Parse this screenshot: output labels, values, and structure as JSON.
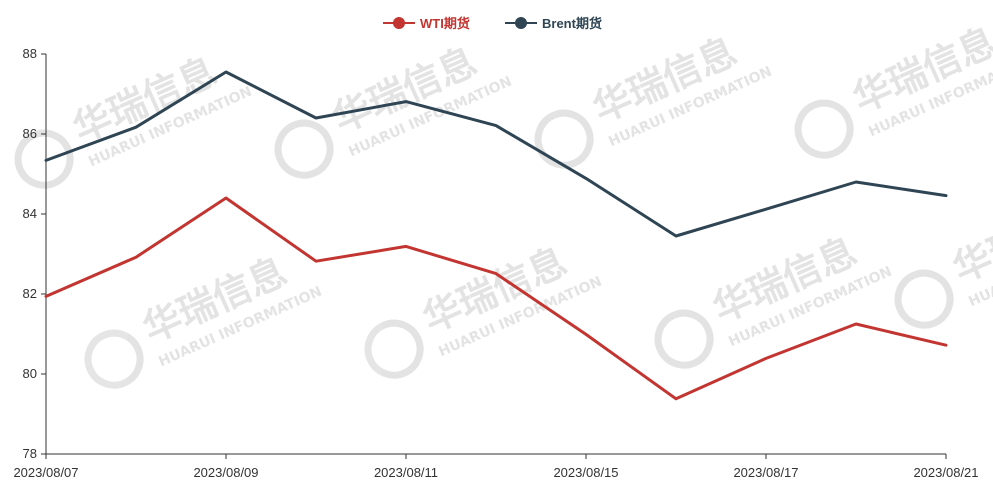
{
  "chart_data": {
    "type": "line",
    "title": "",
    "xlabel": "",
    "ylabel": "",
    "ylim": [
      78,
      88
    ],
    "yticks": [
      78,
      80,
      82,
      84,
      86,
      88
    ],
    "grid": false,
    "legend_position": "top-center",
    "x": [
      "2023/08/07",
      "2023/08/08",
      "2023/08/09",
      "2023/08/10",
      "2023/08/11",
      "2023/08/14",
      "2023/08/15",
      "2023/08/16",
      "2023/08/17",
      "2023/08/18",
      "2023/08/21"
    ],
    "xtick_labels": [
      "2023/08/07",
      "2023/08/09",
      "2023/08/11",
      "2023/08/15",
      "2023/08/17",
      "2023/08/21"
    ],
    "series": [
      {
        "name": "WTI期货",
        "color": "#c23531",
        "values": [
          81.94,
          82.92,
          84.4,
          82.82,
          83.19,
          82.51,
          80.99,
          79.38,
          80.39,
          81.25,
          80.72
        ]
      },
      {
        "name": "Brent期货",
        "color": "#2f4554",
        "values": [
          85.34,
          86.17,
          87.55,
          86.4,
          86.81,
          86.21,
          84.89,
          83.45,
          84.12,
          84.8,
          84.46
        ]
      }
    ]
  },
  "watermark": {
    "text_cn": "华瑞信息",
    "text_en": "HUARUI INFORMATION"
  }
}
